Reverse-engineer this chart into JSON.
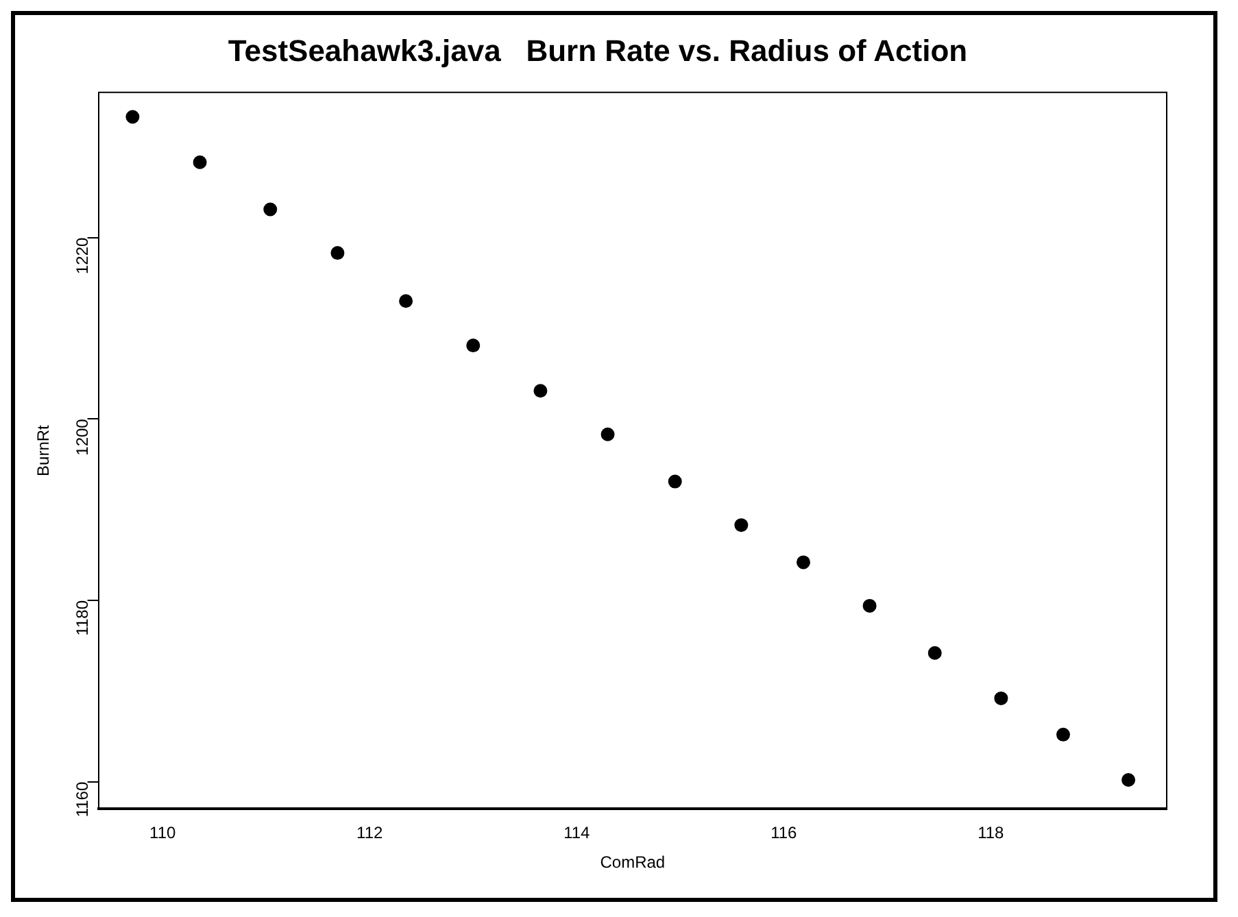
{
  "chart_data": {
    "type": "scatter",
    "title": "TestSeahawk3.java   Burn Rate vs. Radius of Action",
    "xlabel": "ComRad",
    "ylabel": "BurnRt",
    "x": [
      109.71,
      110.36,
      111.04,
      111.69,
      112.35,
      113.0,
      113.65,
      114.3,
      114.95,
      115.59,
      116.19,
      116.83,
      117.46,
      118.1,
      118.7,
      119.33
    ],
    "series": [
      {
        "color": "#000000",
        "values": [
          1233.3,
          1228.3,
          1223.1,
          1218.3,
          1213,
          1208.1,
          1203.1,
          1198.3,
          1193.1,
          1188.3,
          1184.2,
          1179.4,
          1174.2,
          1169.2,
          1165.2,
          1160.2
        ]
      }
    ],
    "xlim": [
      109.38,
      119.7
    ],
    "xticks": [
      110,
      112,
      114,
      116,
      118
    ],
    "ylim": [
      1157,
      1236
    ],
    "yticks": [
      1160,
      1180,
      1200,
      1220
    ],
    "grid": false,
    "legend": false,
    "marker": "circle"
  }
}
